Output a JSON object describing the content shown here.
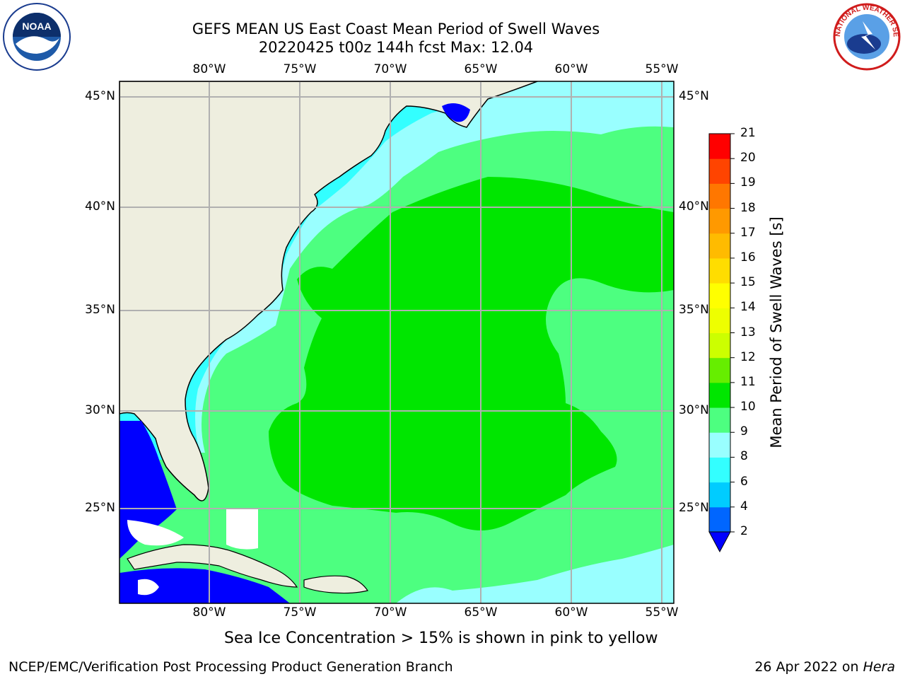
{
  "header": {
    "title_line1": "GEFS MEAN US East Coast Mean Period of Swell Waves",
    "title_line2": "20220425 t00z 144h fcst   Max: 12.04"
  },
  "logos": {
    "left": {
      "icon": "noaa-logo-icon",
      "text": "NOAA"
    },
    "right": {
      "icon": "nws-logo-icon",
      "ring_text": "NATIONAL WEATHER SERVICE"
    }
  },
  "map": {
    "lon_labels": [
      "80°W",
      "75°W",
      "70°W",
      "65°W",
      "60°W",
      "55°W"
    ],
    "lat_labels": [
      "45°N",
      "40°N",
      "35°N",
      "30°N",
      "25°N"
    ],
    "colors": {
      "land": "#eeeedf",
      "ocean_base": "#4dff80",
      "core": "#00e600",
      "shelf": "#99ffff",
      "coast": "#33ffff",
      "deep_blue": "#0000ff",
      "white": "#ffffff",
      "grid": "#b0b0b0"
    }
  },
  "colorbar": {
    "label": "Mean Period of Swell Waves [s]",
    "ticks": [
      "2",
      "4",
      "6",
      "8",
      "9",
      "10",
      "11",
      "12",
      "13",
      "14",
      "15",
      "16",
      "17",
      "18",
      "19",
      "20",
      "21"
    ],
    "colors": [
      "#0066ff",
      "#00ccff",
      "#33ffff",
      "#99ffff",
      "#4dff80",
      "#00e600",
      "#66ee00",
      "#ccff00",
      "#eeff00",
      "#ffff00",
      "#ffdd00",
      "#ffbb00",
      "#ff9900",
      "#ff7700",
      "#ff4400",
      "#ff0000"
    ],
    "under_color": "#0000ff"
  },
  "footer": {
    "note": "Sea Ice Concentration > 15% is shown in pink to yellow",
    "left": "NCEP/EMC/Verification Post Processing Product Generation Branch",
    "date": "26 Apr 2022 on ",
    "machine": "Hera"
  }
}
